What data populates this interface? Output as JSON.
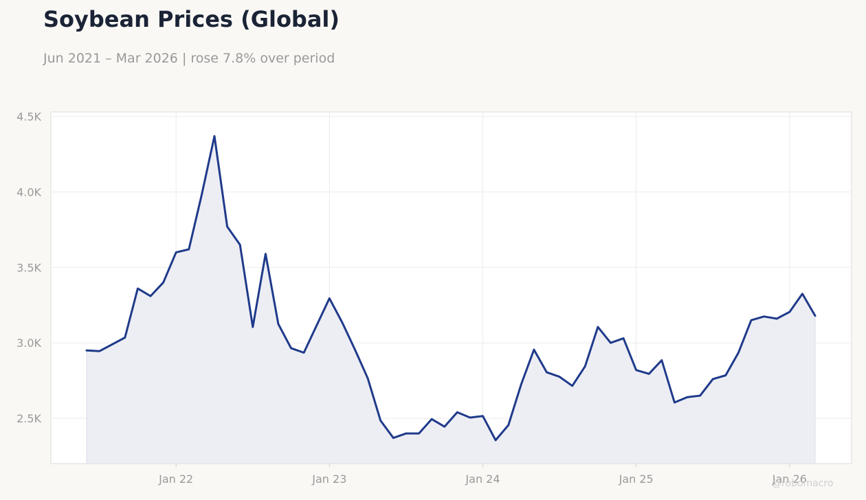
{
  "title": "Soybean Prices (Global)",
  "subtitle": "Jun 2021 – Mar 2026 | rose 7.8% over period",
  "watermark": "@robomacro",
  "colors": {
    "line": "#1f3a8a",
    "fill": "#edeef4",
    "grid": "#ebebeb",
    "axis_text": "#999999",
    "title": "#1b2436",
    "background": "#f9f8f5"
  },
  "chart_data": {
    "type": "area",
    "title": "Soybean Prices (Global)",
    "subtitle": "Jun 2021 – Mar 2026 | rose 7.8% over period",
    "xlabel": "",
    "ylabel": "",
    "ylim": [
      2200,
      4530
    ],
    "grid": true,
    "legend": "none",
    "y_ticks": [
      2500,
      3000,
      3500,
      4000,
      4500
    ],
    "y_tick_labels": [
      "2.5K",
      "3.0K",
      "3.5K",
      "4.0K",
      "4.5K"
    ],
    "x_ticks": [
      "2022-01",
      "2023-01",
      "2024-01",
      "2025-01",
      "2026-01"
    ],
    "x_tick_labels": [
      "Jan 22",
      "Jan 23",
      "Jan 24",
      "Jan 25",
      "Jan 26"
    ],
    "series": [
      {
        "x": [
          "2021-06",
          "2021-07",
          "2021-08",
          "2021-09",
          "2021-10",
          "2021-11",
          "2021-12",
          "2022-01",
          "2022-02",
          "2022-03",
          "2022-04",
          "2022-05",
          "2022-06",
          "2022-07",
          "2022-08",
          "2022-09",
          "2022-10",
          "2022-11",
          "2022-12",
          "2023-01",
          "2023-02",
          "2023-03",
          "2023-04",
          "2023-05",
          "2023-06",
          "2023-07",
          "2023-08",
          "2023-09",
          "2023-10",
          "2023-11",
          "2023-12",
          "2024-01",
          "2024-02",
          "2024-03",
          "2024-04",
          "2024-05",
          "2024-06",
          "2024-07",
          "2024-08",
          "2024-09",
          "2024-10",
          "2024-11",
          "2024-12",
          "2025-01",
          "2025-02",
          "2025-03",
          "2025-04",
          "2025-05",
          "2025-06",
          "2025-07",
          "2025-08",
          "2025-09",
          "2025-10",
          "2025-11",
          "2025-12",
          "2026-01",
          "2026-02",
          "2026-03"
        ],
        "values": [
          2950,
          2945,
          2990,
          3035,
          3360,
          3310,
          3400,
          3600,
          3620,
          3980,
          4370,
          3770,
          3650,
          3105,
          3590,
          3125,
          2965,
          2935,
          3115,
          3295,
          3135,
          2955,
          2765,
          2485,
          2370,
          2400,
          2400,
          2495,
          2445,
          2540,
          2505,
          2515,
          2355,
          2455,
          2725,
          2955,
          2805,
          2775,
          2715,
          2845,
          3105,
          3000,
          3030,
          2820,
          2795,
          2885,
          2605,
          2640,
          2650,
          2760,
          2785,
          2935,
          3150,
          3175,
          3160,
          3205,
          3325,
          3180
        ]
      }
    ]
  }
}
